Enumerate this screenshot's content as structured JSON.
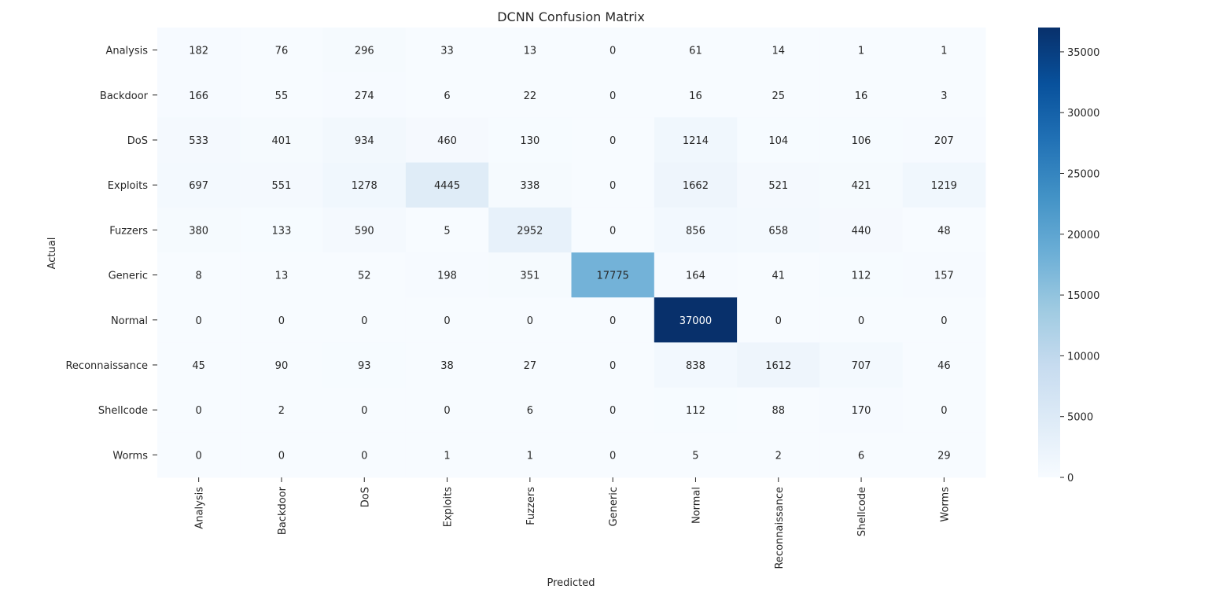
{
  "chart_data": {
    "type": "heatmap",
    "title": "DCNN Confusion Matrix",
    "xlabel": "Predicted",
    "ylabel": "Actual",
    "x_categories": [
      "Analysis",
      "Backdoor",
      "DoS",
      "Exploits",
      "Fuzzers",
      "Generic",
      "Normal",
      "Reconnaissance",
      "Shellcode",
      "Worms"
    ],
    "y_categories": [
      "Analysis",
      "Backdoor",
      "DoS",
      "Exploits",
      "Fuzzers",
      "Generic",
      "Normal",
      "Reconnaissance",
      "Shellcode",
      "Worms"
    ],
    "values": [
      [
        182,
        76,
        296,
        33,
        13,
        0,
        61,
        14,
        1,
        1
      ],
      [
        166,
        55,
        274,
        6,
        22,
        0,
        16,
        25,
        16,
        3
      ],
      [
        533,
        401,
        934,
        460,
        130,
        0,
        1214,
        104,
        106,
        207
      ],
      [
        697,
        551,
        1278,
        4445,
        338,
        0,
        1662,
        521,
        421,
        1219
      ],
      [
        380,
        133,
        590,
        5,
        2952,
        0,
        856,
        658,
        440,
        48
      ],
      [
        8,
        13,
        52,
        198,
        351,
        17775,
        164,
        41,
        112,
        157
      ],
      [
        0,
        0,
        0,
        0,
        0,
        0,
        37000,
        0,
        0,
        0
      ],
      [
        45,
        90,
        93,
        38,
        27,
        0,
        838,
        1612,
        707,
        46
      ],
      [
        0,
        2,
        0,
        0,
        6,
        0,
        112,
        88,
        170,
        0
      ],
      [
        0,
        0,
        0,
        1,
        1,
        0,
        5,
        2,
        6,
        29
      ]
    ],
    "colormap": "Blues",
    "vmin": 0,
    "vmax": 37000,
    "colorbar_ticks": [
      0,
      5000,
      10000,
      15000,
      20000,
      25000,
      30000,
      35000
    ],
    "colorbar_tick_labels": [
      "0",
      "5000",
      "10000",
      "15000",
      "20000",
      "25000",
      "30000",
      "35000"
    ],
    "colors": {
      "low": "#f7fbff",
      "high": "#08306b",
      "text_dark": "#262626",
      "text_light": "#ffffff"
    }
  }
}
